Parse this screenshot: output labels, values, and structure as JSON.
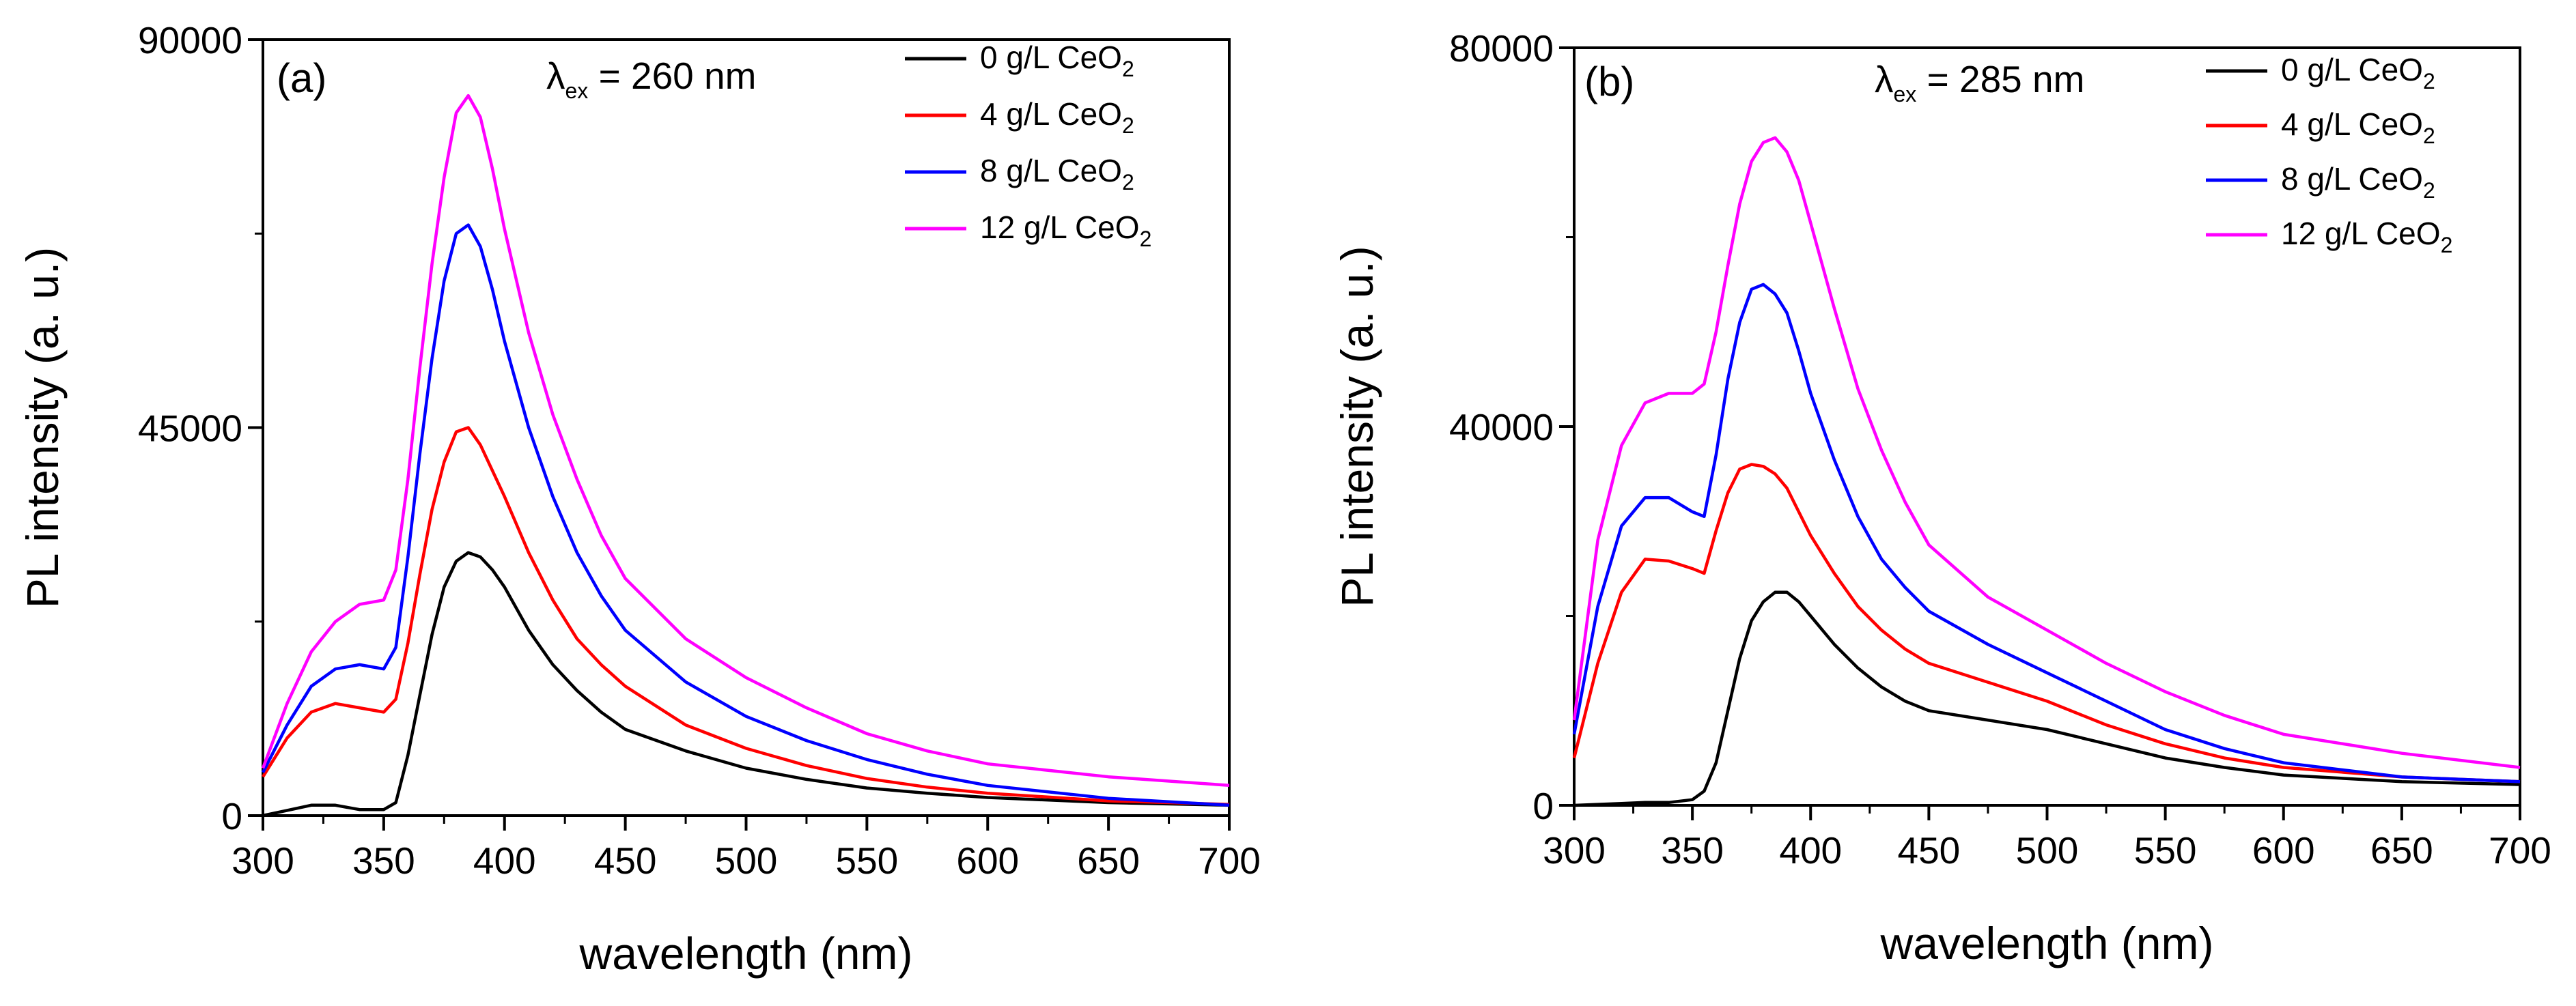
{
  "chart_data": [
    {
      "type": "line",
      "panel_label": "(a)",
      "annotation": {
        "symbol": "λ",
        "subscript": "ex",
        "text": " = 260 nm"
      },
      "xlabel": "wavelength (nm)",
      "ylabel": "PL intensity (a. u.)",
      "xlim": [
        300,
        700
      ],
      "ylim": [
        0,
        90000
      ],
      "x_ticks": [
        "300",
        "350",
        "400",
        "450",
        "500",
        "550",
        "600",
        "650",
        "700"
      ],
      "y_ticks": [
        "0",
        "45000",
        "90000"
      ],
      "x_tick_values": [
        300,
        350,
        400,
        450,
        500,
        550,
        600,
        650,
        700
      ],
      "y_tick_values": [
        0,
        45000,
        90000
      ],
      "legend_position": "top-right",
      "x": [
        300,
        310,
        320,
        330,
        340,
        350,
        355,
        360,
        365,
        370,
        375,
        380,
        385,
        390,
        395,
        400,
        410,
        420,
        430,
        440,
        450,
        475,
        500,
        525,
        550,
        575,
        600,
        650,
        700
      ],
      "series": [
        {
          "name": "0 g/L CeO",
          "name_sub": "2",
          "color": "#000000",
          "values": [
            0,
            600,
            1200,
            1200,
            700,
            700,
            1500,
            7000,
            14000,
            21000,
            26500,
            29500,
            30500,
            30000,
            28500,
            26500,
            21500,
            17500,
            14500,
            12000,
            10000,
            7500,
            5500,
            4200,
            3200,
            2600,
            2100,
            1500,
            1200
          ]
        },
        {
          "name": "4 g/L CeO",
          "name_sub": "2",
          "color": "#ff0000",
          "values": [
            4500,
            9000,
            12000,
            13000,
            12500,
            12000,
            13500,
            20000,
            28000,
            35500,
            41000,
            44500,
            45000,
            43000,
            40000,
            37000,
            30500,
            25000,
            20500,
            17500,
            15000,
            10500,
            7800,
            5800,
            4300,
            3300,
            2600,
            1700,
            1300
          ]
        },
        {
          "name": "8 g/L CeO",
          "name_sub": "2",
          "color": "#0000ff",
          "values": [
            5000,
            10500,
            15000,
            17000,
            17500,
            17000,
            19500,
            30000,
            42000,
            53000,
            62000,
            67500,
            68500,
            66000,
            61000,
            55000,
            45000,
            37000,
            30500,
            25500,
            21500,
            15500,
            11500,
            8700,
            6500,
            4800,
            3500,
            2000,
            1200
          ]
        },
        {
          "name": "12 g/L CeO",
          "name_sub": "2",
          "color": "#ff00ff",
          "values": [
            5500,
            13000,
            19000,
            22500,
            24500,
            25000,
            28500,
            39000,
            52000,
            64000,
            74000,
            81500,
            83500,
            81000,
            75000,
            68000,
            56000,
            46500,
            39000,
            32500,
            27500,
            20500,
            16000,
            12500,
            9500,
            7500,
            6000,
            4500,
            3500
          ]
        }
      ]
    },
    {
      "type": "line",
      "panel_label": "(b)",
      "annotation": {
        "symbol": "λ",
        "subscript": "ex",
        "text": " = 285 nm"
      },
      "xlabel": "wavelength (nm)",
      "ylabel": "PL intensity (a. u.)",
      "xlim": [
        300,
        700
      ],
      "ylim": [
        0,
        80000
      ],
      "x_ticks": [
        "300",
        "350",
        "400",
        "450",
        "500",
        "550",
        "600",
        "650",
        "700"
      ],
      "y_ticks": [
        "0",
        "40000",
        "80000"
      ],
      "x_tick_values": [
        300,
        350,
        400,
        450,
        500,
        550,
        600,
        650,
        700
      ],
      "y_tick_values": [
        0,
        40000,
        80000
      ],
      "legend_position": "top-right",
      "x": [
        300,
        310,
        320,
        330,
        340,
        350,
        355,
        360,
        365,
        370,
        375,
        380,
        385,
        390,
        395,
        400,
        410,
        420,
        430,
        440,
        450,
        475,
        500,
        525,
        550,
        575,
        600,
        650,
        700
      ],
      "series": [
        {
          "name": "0 g/L CeO",
          "name_sub": "2",
          "color": "#000000",
          "values": [
            0,
            100,
            200,
            300,
            300,
            600,
            1500,
            4500,
            10000,
            15500,
            19500,
            21500,
            22500,
            22500,
            21500,
            20000,
            17000,
            14500,
            12500,
            11000,
            10000,
            9000,
            8000,
            6500,
            5000,
            4000,
            3200,
            2500,
            2200
          ]
        },
        {
          "name": "4 g/L CeO",
          "name_sub": "2",
          "color": "#ff0000",
          "values": [
            5000,
            15000,
            22500,
            26000,
            25800,
            25000,
            24500,
            29000,
            33000,
            35500,
            36000,
            35800,
            35000,
            33500,
            31000,
            28500,
            24500,
            21000,
            18500,
            16500,
            15000,
            13000,
            11000,
            8500,
            6500,
            5000,
            4000,
            3000,
            2500
          ]
        },
        {
          "name": "8 g/L CeO",
          "name_sub": "2",
          "color": "#0000ff",
          "values": [
            7500,
            21000,
            29500,
            32500,
            32500,
            31000,
            30500,
            37000,
            45000,
            51000,
            54500,
            55000,
            54000,
            52000,
            48000,
            43500,
            36500,
            30500,
            26000,
            23000,
            20500,
            17000,
            14000,
            11000,
            8000,
            6000,
            4500,
            3000,
            2500
          ]
        },
        {
          "name": "12 g/L CeO",
          "name_sub": "2",
          "color": "#ff00ff",
          "values": [
            9000,
            28000,
            38000,
            42500,
            43500,
            43500,
            44500,
            50000,
            57000,
            63500,
            68000,
            70000,
            70500,
            69000,
            66000,
            61500,
            52500,
            44000,
            37500,
            32000,
            27500,
            22000,
            18500,
            15000,
            12000,
            9500,
            7500,
            5500,
            4000
          ]
        }
      ]
    }
  ]
}
